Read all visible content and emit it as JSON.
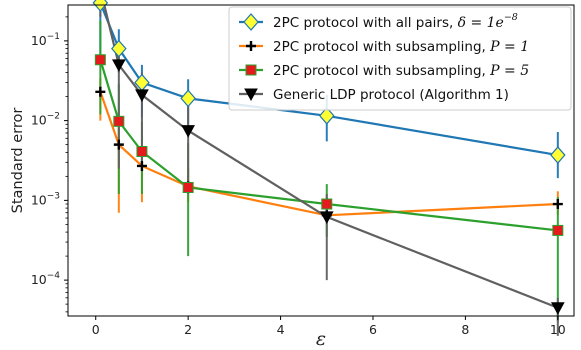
{
  "chart_data": {
    "type": "line",
    "title": "",
    "xlabel": "ε",
    "ylabel": "Standard error",
    "xlim": [
      -0.6,
      10.35
    ],
    "ylim_log10": [
      -4.45,
      -0.55
    ],
    "y_scale": "log",
    "x_ticks": [
      0,
      2,
      4,
      6,
      8,
      10
    ],
    "x_tick_labels": [
      "0",
      "2",
      "4",
      "6",
      "8",
      "10"
    ],
    "y_ticks_log10": [
      -4,
      -3,
      -2,
      -1
    ],
    "y_tick_base": "10",
    "y_tick_exponents": [
      "−4",
      "−3",
      "−2",
      "−1"
    ],
    "grid": false,
    "legend_position": "top-right",
    "series": [
      {
        "name": "2PC protocol with all pairs, δ = 1e^−8",
        "legend_prefix": "2PC protocol with all pairs, ",
        "legend_math": "δ = 1e",
        "legend_sup": "−8",
        "color": "#1f77b4",
        "marker": "diamond",
        "marker_fill": "#ffff33",
        "x": [
          0.1,
          0.5,
          1,
          2,
          5,
          10
        ],
        "y": [
          0.3,
          0.08,
          0.03,
          0.019,
          0.0115,
          0.0037
        ],
        "y_err_low": [
          0.05,
          0.04,
          0.011,
          0.009,
          0.0055,
          0.0019
        ],
        "y_err_high": [
          0.34,
          0.14,
          0.05,
          0.033,
          0.021,
          0.0072
        ]
      },
      {
        "name": "2PC protocol with subsampling, P = 1",
        "legend_prefix": "2PC protocol with subsampling, ",
        "legend_math": "P = 1",
        "legend_sup": "",
        "color": "#ff7f0e",
        "marker": "plus",
        "marker_fill": "#000000",
        "x": [
          0.1,
          0.5,
          1,
          2,
          5,
          10
        ],
        "y": [
          0.023,
          0.005,
          0.0027,
          0.0015,
          0.00065,
          0.0009
        ],
        "y_err_low": [
          0.01,
          0.0007,
          0.00095,
          0.00095,
          0.00055,
          0.00065
        ],
        "y_err_high": [
          0.034,
          0.0095,
          0.0045,
          0.0026,
          0.0011,
          0.0013
        ]
      },
      {
        "name": "2PC protocol with subsampling, P = 5",
        "legend_prefix": "2PC protocol with subsampling, ",
        "legend_math": "P = 5",
        "legend_sup": "",
        "color": "#2ca02c",
        "marker": "square",
        "marker_fill": "#e41a1c",
        "x": [
          0.1,
          0.5,
          1,
          2,
          5,
          10
        ],
        "y": [
          0.058,
          0.0098,
          0.0041,
          0.00145,
          0.0009,
          0.00042
        ],
        "y_err_low": [
          0.012,
          0.0012,
          0.0012,
          0.0002,
          0.00035,
          3e-05
        ],
        "y_err_high": [
          0.18,
          0.029,
          0.0096,
          0.0052,
          0.0016,
          0.0011
        ]
      },
      {
        "name": "Generic LDP protocol (Algorithm 1)",
        "legend_prefix": "Generic LDP protocol (Algorithm 1)",
        "legend_math": "",
        "legend_sup": "",
        "color": "#606060",
        "marker": "triangle-down",
        "marker_fill": "#000000",
        "x": [
          0.1,
          0.5,
          1,
          2,
          5,
          10
        ],
        "y": [
          0.45,
          0.05,
          0.021,
          0.0075,
          0.00062,
          4.5e-05
        ],
        "y_err_low": [
          0.2,
          0.0025,
          0.0025,
          0.0012,
          0.0001,
          2e-05
        ],
        "y_err_high": [
          0.65,
          0.09,
          0.04,
          0.019,
          0.0012,
          6e-05
        ]
      }
    ]
  }
}
